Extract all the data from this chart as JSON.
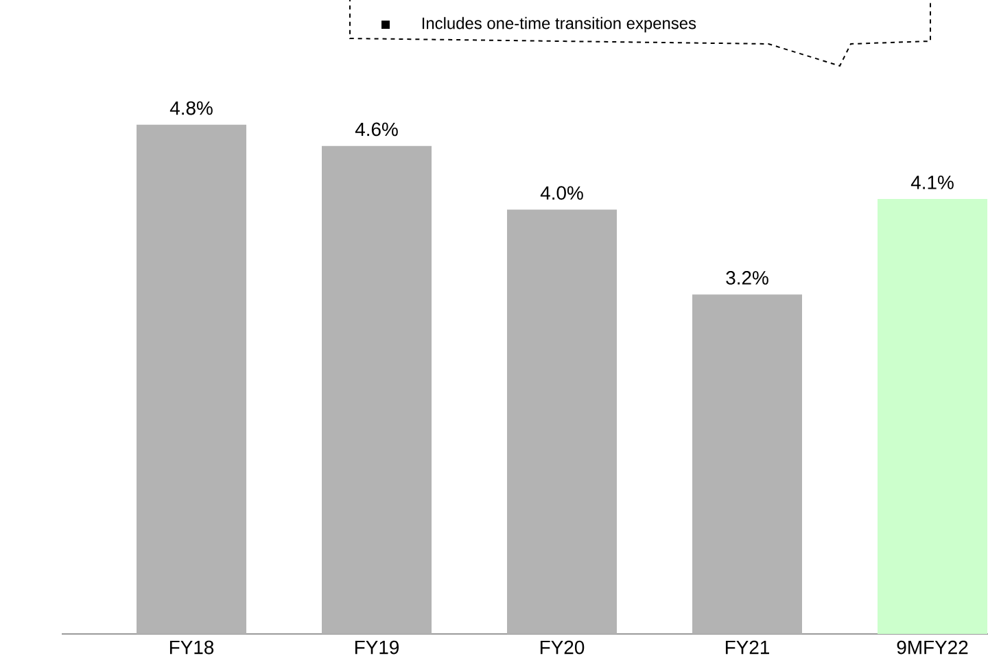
{
  "chart_data": {
    "type": "bar",
    "categories": [
      "FY18",
      "FY19",
      "FY20",
      "FY21",
      "9MFY22"
    ],
    "values": [
      4.8,
      4.6,
      4.0,
      3.2,
      4.1
    ],
    "colors": [
      "#b3b3b3",
      "#b3b3b3",
      "#b3b3b3",
      "#b3b3b3",
      "#ccffcc"
    ],
    "value_labels": [
      "4.8%",
      "4.6%",
      "4.0%",
      "3.2%",
      "4.1%"
    ],
    "annotations": [
      "Includes one-time transition expenses"
    ],
    "tick_labels": "x"
  }
}
